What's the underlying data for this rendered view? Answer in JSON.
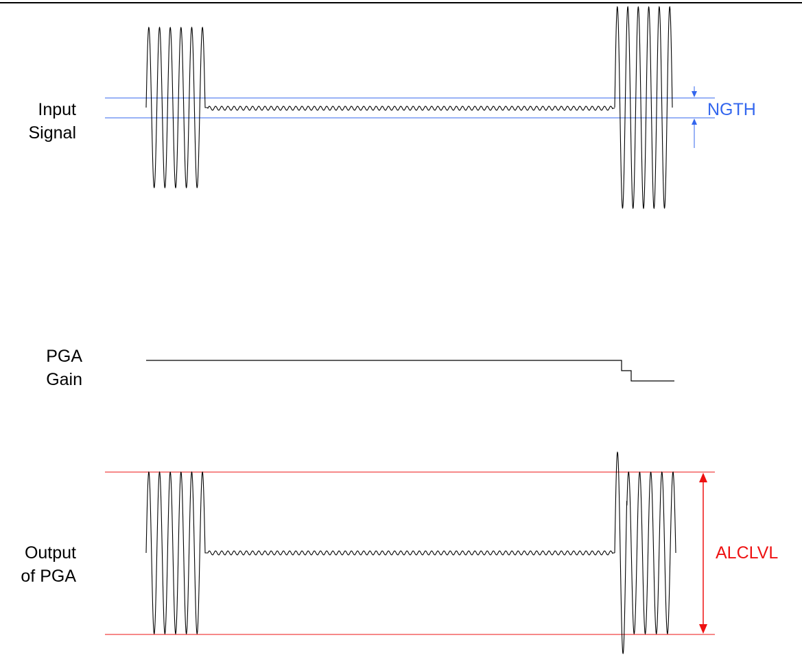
{
  "labels": {
    "input_signal": [
      "Input",
      "Signal"
    ],
    "pga_gain": [
      "PGA",
      "Gain"
    ],
    "output_pga": [
      "Output",
      "of PGA"
    ],
    "ngth": "NGTH",
    "alclvl": "ALCLVL"
  },
  "colors": {
    "signal": "#000000",
    "threshold": "#3366ee",
    "level": "#ee1111"
  }
}
